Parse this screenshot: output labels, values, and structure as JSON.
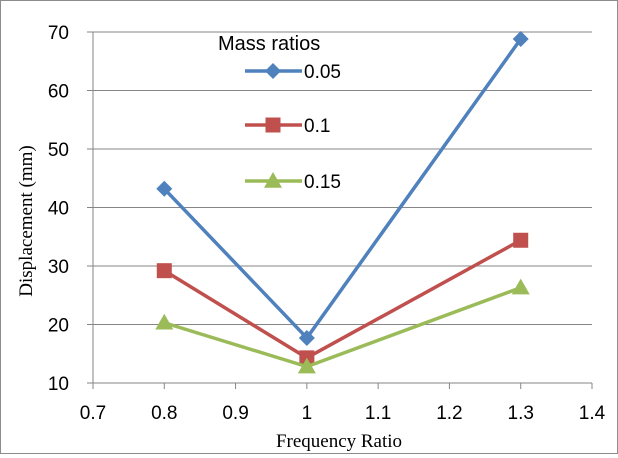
{
  "chart_data": {
    "type": "line",
    "title": "",
    "xlabel": "Frequency Ratio",
    "ylabel": "Displacement (mm)",
    "xlim": [
      0.7,
      1.4
    ],
    "ylim": [
      10,
      70
    ],
    "x_ticks": [
      "0.7",
      "0.8",
      "0.9",
      "1",
      "1.1",
      "1.2",
      "1.3",
      "1.4"
    ],
    "y_ticks": [
      "10",
      "20",
      "30",
      "40",
      "50",
      "60",
      "70"
    ],
    "x_tick_values": [
      0.7,
      0.8,
      0.9,
      1.0,
      1.1,
      1.2,
      1.3,
      1.4
    ],
    "y_tick_values": [
      10,
      20,
      30,
      40,
      50,
      60,
      70
    ],
    "grid": "horizontal",
    "legend": {
      "title": "Mass ratios",
      "placement": "top-center"
    },
    "x": [
      0.8,
      1.0,
      1.3
    ],
    "series": [
      {
        "name": "0.05",
        "values": [
          43.2,
          17.7,
          68.8
        ],
        "color": "#4F81BD",
        "marker": "diamond"
      },
      {
        "name": "0.1",
        "values": [
          29.2,
          14.3,
          34.4
        ],
        "color": "#C0504D",
        "marker": "square"
      },
      {
        "name": "0.15",
        "values": [
          20.3,
          12.8,
          26.3
        ],
        "color": "#9BBB59",
        "marker": "triangle"
      }
    ]
  }
}
